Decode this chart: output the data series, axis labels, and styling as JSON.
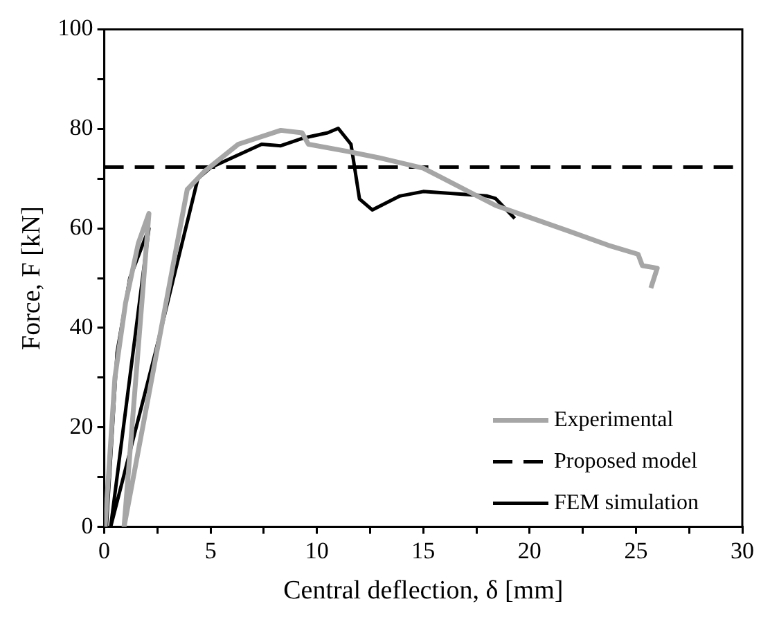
{
  "chart_data": {
    "type": "line",
    "xlabel": "Central deflection, δ [mm]",
    "ylabel": "Force, F [kN]",
    "xlim": [
      0,
      30
    ],
    "ylim": [
      0,
      100
    ],
    "xticks": [
      0,
      {
        "value": 2.5,
        "label": null
      },
      5,
      {
        "value": 7.5,
        "label": null
      },
      10,
      {
        "value": 12.5,
        "label": null
      },
      15,
      {
        "value": 17.5,
        "label": null
      },
      20,
      {
        "value": 22.5,
        "label": null
      },
      25,
      {
        "value": 27.5,
        "label": null
      },
      30
    ],
    "yticks": [
      0,
      {
        "value": 10,
        "label": null
      },
      20,
      {
        "value": 30,
        "label": null
      },
      40,
      {
        "value": 50,
        "label": null
      },
      60,
      {
        "value": 70,
        "label": null
      },
      80,
      {
        "value": 90,
        "label": null
      },
      100
    ],
    "grid": false,
    "legend": "bottom right",
    "marker": "none",
    "series": [
      {
        "name": "Experimental",
        "color": "#a6a6a6",
        "line_style": "solid",
        "x": [
          0.04,
          0.5,
          1.0,
          1.6,
          2.1,
          0.93,
          3.9,
          4.7,
          6.3,
          8.3,
          9.3,
          9.6,
          11.4,
          12.9,
          15.0,
          18.4,
          21.8,
          23.7,
          25.1,
          25.3,
          26.0,
          25.7
        ],
        "values": [
          0,
          30,
          45,
          57,
          63,
          0,
          67.8,
          71.4,
          76.9,
          79.7,
          79.2,
          76.9,
          75.5,
          74.2,
          72.1,
          64.6,
          59.5,
          56.6,
          54.8,
          52.5,
          52.0,
          48
        ]
      },
      {
        "name": "Proposed model",
        "color": "#000000",
        "line_style": "dashed",
        "x": [
          0,
          30
        ],
        "values": [
          72.3,
          72.3
        ]
      },
      {
        "name": "FEM simulation",
        "color": "#000000",
        "line_style": "solid",
        "x": [
          0.1,
          0.6,
          1.2,
          2.1,
          0.3,
          2.4,
          4.4,
          5.0,
          7.4,
          8.3,
          9.4,
          10.5,
          11.0,
          11.6,
          12.0,
          12.6,
          13.9,
          15.0,
          18.0,
          18.4,
          19.3
        ],
        "values": [
          0,
          35,
          50,
          60,
          0,
          35,
          70,
          72.2,
          76.9,
          76.6,
          78.2,
          79.2,
          80.1,
          76.9,
          65.9,
          63.7,
          66.5,
          67.4,
          66.5,
          66.0,
          62
        ]
      }
    ]
  }
}
